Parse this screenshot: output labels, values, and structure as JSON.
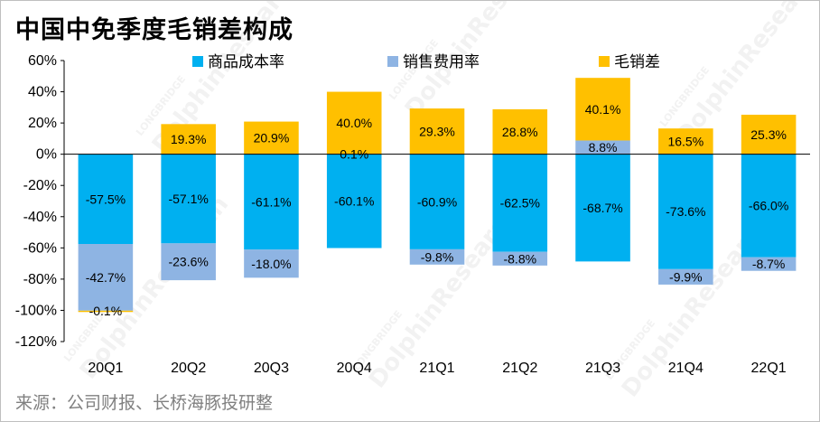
{
  "title": "中国中免季度毛销差构成",
  "source": "来源：公司财报、长桥海豚投研整",
  "chart_data": {
    "type": "bar",
    "stacked": true,
    "categories": [
      "20Q1",
      "20Q2",
      "20Q3",
      "20Q4",
      "21Q1",
      "21Q2",
      "21Q3",
      "21Q4",
      "22Q1"
    ],
    "ylim": [
      -120,
      60
    ],
    "yticks": [
      60,
      40,
      20,
      0,
      -20,
      -40,
      -60,
      -80,
      -100,
      -120
    ],
    "ytick_labels": [
      "60%",
      "40%",
      "20%",
      "0%",
      "-20%",
      "-40%",
      "-60%",
      "-80%",
      "-100%",
      "-120%"
    ],
    "legend_position": "top",
    "series": [
      {
        "name": "商品成本率",
        "color": "#00B0F0",
        "values": [
          -57.5,
          -57.1,
          -61.1,
          -60.1,
          -60.9,
          -62.5,
          -68.7,
          -73.6,
          -66.0
        ],
        "labels": [
          "-57.5%",
          "-57.1%",
          "-61.1%",
          "-60.1%",
          "-60.9%",
          "-62.5%",
          "-68.7%",
          "-73.6%",
          "-66.0%"
        ]
      },
      {
        "name": "销售费用率",
        "color": "#8EB4E3",
        "values": [
          -42.7,
          -23.6,
          -18.0,
          null,
          -9.8,
          -8.8,
          8.8,
          -9.9,
          -8.7
        ],
        "labels": [
          "-42.7%",
          "-23.6%",
          "-18.0%",
          "",
          "-9.8%",
          "-8.8%",
          "8.8%",
          "-9.9%",
          "-8.7%"
        ]
      },
      {
        "name": "毛销差",
        "color": "#FFC000",
        "values": [
          -0.1,
          19.3,
          20.9,
          40.0,
          29.3,
          28.8,
          40.1,
          16.5,
          25.3
        ],
        "labels": [
          "-0.1%",
          "19.3%",
          "20.9%",
          "40.0%",
          "29.3%",
          "28.8%",
          "40.1%",
          "16.5%",
          "25.3%"
        ]
      }
    ],
    "extra_labels": [
      {
        "category": "20Q4",
        "text": "0.1%"
      }
    ]
  }
}
